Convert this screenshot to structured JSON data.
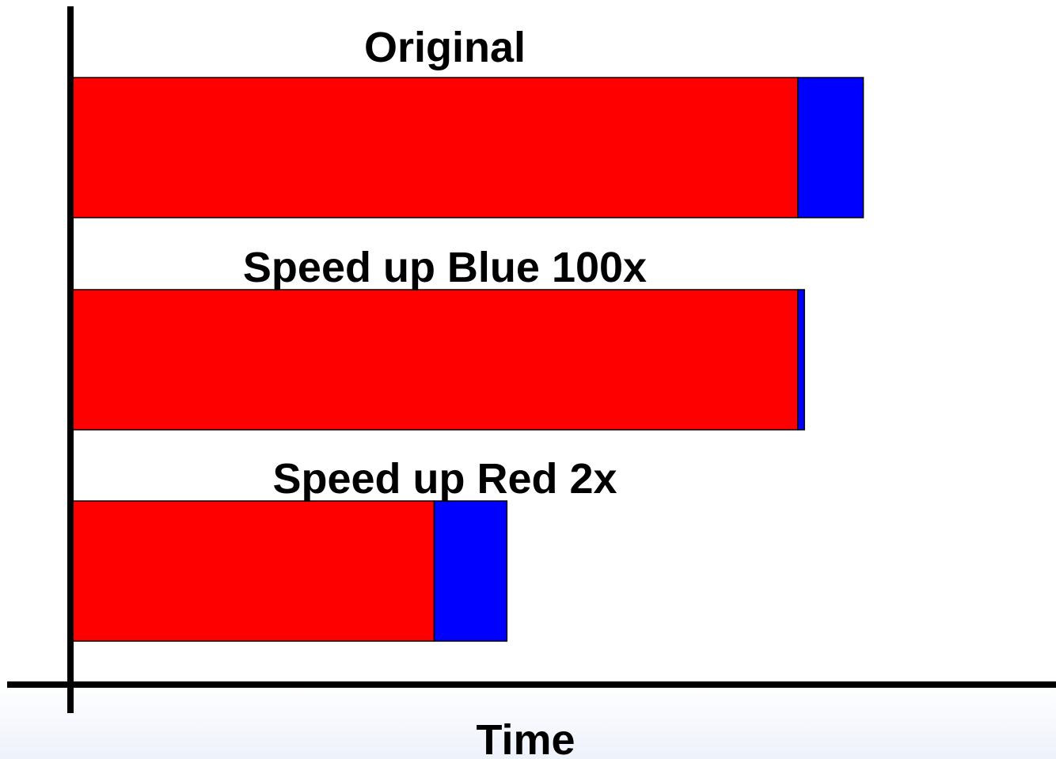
{
  "chart_data": {
    "type": "bar",
    "orientation": "horizontal",
    "stacked": true,
    "xlabel": "Time",
    "categories": [
      "Original",
      "Speed up Blue 100x",
      "Speed up Red 2x"
    ],
    "series": [
      {
        "color": "#ff0000",
        "values": [
          100,
          100,
          50
        ]
      },
      {
        "color": "#0000ff",
        "values": [
          9,
          0.9,
          10
        ]
      }
    ],
    "xlim": [
      0,
      127
    ],
    "grid": false,
    "legend": "none"
  }
}
